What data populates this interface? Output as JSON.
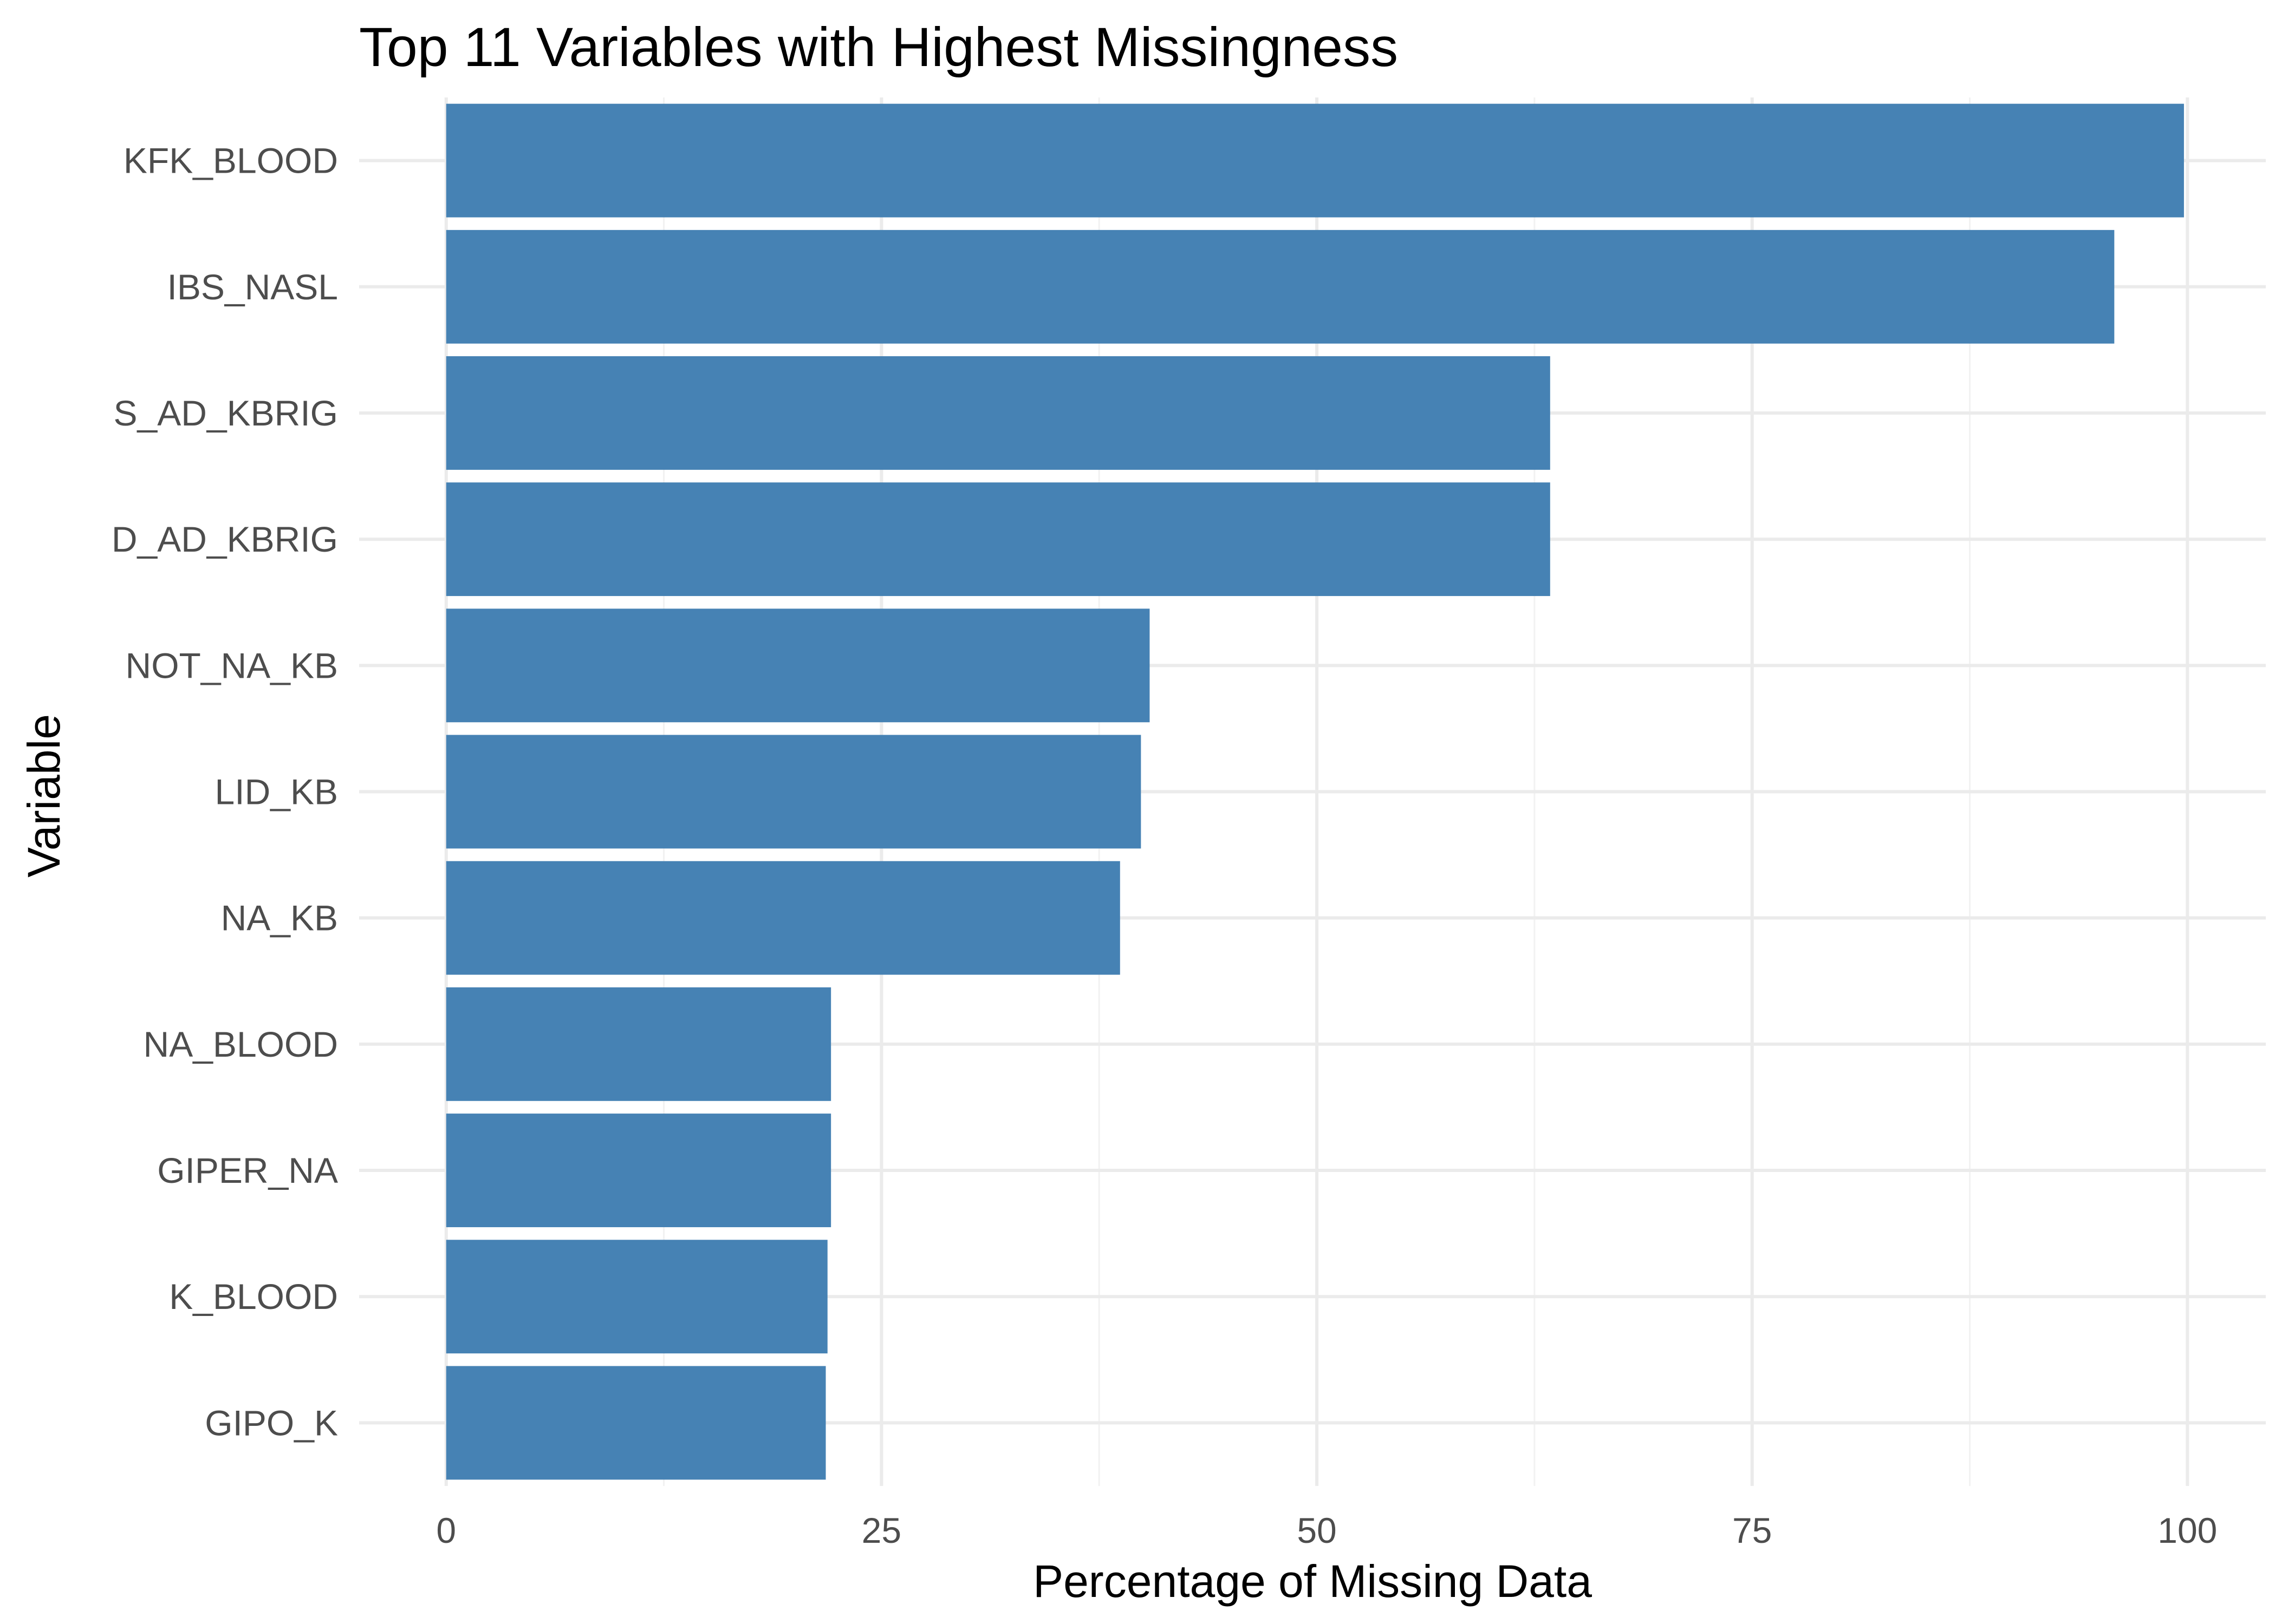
{
  "chart_data": {
    "type": "bar",
    "orientation": "horizontal",
    "title": "Top 11 Variables with Highest Missingness",
    "xlabel": "Percentage of Missing Data",
    "ylabel": "Variable",
    "categories": [
      "KFK_BLOOD",
      "IBS_NASL",
      "S_AD_KBRIG",
      "D_AD_KBRIG",
      "NOT_NA_KB",
      "LID_KB",
      "NA_KB",
      "NA_BLOOD",
      "GIPER_NA",
      "K_BLOOD",
      "GIPO_K"
    ],
    "values": [
      99.8,
      95.8,
      63.4,
      63.4,
      40.4,
      39.9,
      38.7,
      22.1,
      22.1,
      21.9,
      21.8
    ],
    "xlim": [
      -5,
      104.5
    ],
    "x_ticks": [
      0,
      25,
      50,
      75,
      100
    ],
    "x_tick_labels": [
      "0",
      "25",
      "50",
      "75",
      "100"
    ],
    "grid": true,
    "legend": "none",
    "colors": {
      "bar": "#4682b4",
      "grid_major": "#ebebeb",
      "grid_minor": "#f2f2f2",
      "tick_text": "#4d4d4d",
      "title_text": "#000000",
      "background": "#ffffff"
    }
  }
}
